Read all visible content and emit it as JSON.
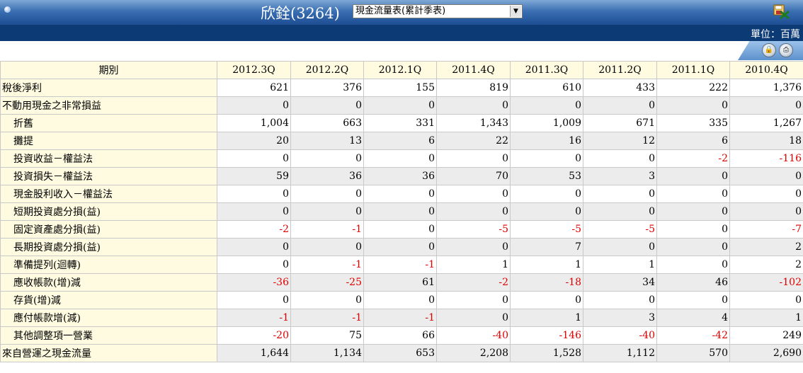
{
  "header": {
    "title": "欣銓(3264)",
    "report_select": "現金流量表(累計季表)",
    "unit": "單位：百萬"
  },
  "table": {
    "label_header": "期別",
    "columns": [
      "2012.3Q",
      "2012.2Q",
      "2012.1Q",
      "2011.4Q",
      "2011.3Q",
      "2011.2Q",
      "2011.1Q",
      "2010.4Q"
    ],
    "rows": [
      {
        "label": "稅後淨利",
        "indent": false,
        "values": [
          "621",
          "376",
          "155",
          "819",
          "610",
          "433",
          "222",
          "1,376"
        ]
      },
      {
        "label": "不動用現金之非常損益",
        "indent": false,
        "values": [
          "0",
          "0",
          "0",
          "0",
          "0",
          "0",
          "0",
          "0"
        ]
      },
      {
        "label": "折舊",
        "indent": true,
        "values": [
          "1,004",
          "663",
          "331",
          "1,343",
          "1,009",
          "671",
          "335",
          "1,267"
        ]
      },
      {
        "label": "攤提",
        "indent": true,
        "values": [
          "20",
          "13",
          "6",
          "22",
          "16",
          "12",
          "6",
          "18"
        ]
      },
      {
        "label": "投資收益－權益法",
        "indent": true,
        "values": [
          "0",
          "0",
          "0",
          "0",
          "0",
          "0",
          "-2",
          "-116"
        ]
      },
      {
        "label": "投資損失－權益法",
        "indent": true,
        "values": [
          "59",
          "36",
          "36",
          "70",
          "53",
          "3",
          "0",
          "0"
        ]
      },
      {
        "label": "現金股利收入－權益法",
        "indent": true,
        "values": [
          "0",
          "0",
          "0",
          "0",
          "0",
          "0",
          "0",
          "0"
        ]
      },
      {
        "label": "短期投資處分損(益)",
        "indent": true,
        "values": [
          "0",
          "0",
          "0",
          "0",
          "0",
          "0",
          "0",
          "0"
        ]
      },
      {
        "label": "固定資產處分損(益)",
        "indent": true,
        "values": [
          "-2",
          "-1",
          "0",
          "-5",
          "-5",
          "-5",
          "0",
          "-7"
        ]
      },
      {
        "label": "長期投資處分損(益)",
        "indent": true,
        "values": [
          "0",
          "0",
          "0",
          "0",
          "7",
          "0",
          "0",
          "2"
        ]
      },
      {
        "label": "準備提列(迴轉)",
        "indent": true,
        "values": [
          "0",
          "-1",
          "-1",
          "1",
          "1",
          "1",
          "0",
          "2"
        ]
      },
      {
        "label": "應收帳款(增)減",
        "indent": true,
        "values": [
          "-36",
          "-25",
          "61",
          "-2",
          "-18",
          "34",
          "46",
          "-102"
        ]
      },
      {
        "label": "存貨(增)減",
        "indent": true,
        "values": [
          "0",
          "0",
          "0",
          "0",
          "0",
          "0",
          "0",
          "0"
        ]
      },
      {
        "label": "應付帳款增(減)",
        "indent": true,
        "values": [
          "-1",
          "-1",
          "-1",
          "0",
          "1",
          "3",
          "4",
          "1"
        ]
      },
      {
        "label": "其他調整項一營業",
        "indent": true,
        "values": [
          "-20",
          "75",
          "66",
          "-40",
          "-146",
          "-40",
          "-42",
          "249"
        ]
      },
      {
        "label": "來自營運之現金流量",
        "indent": false,
        "values": [
          "1,644",
          "1,134",
          "653",
          "2,208",
          "1,528",
          "1,112",
          "570",
          "2,690"
        ]
      }
    ]
  },
  "colors": {
    "negative": "#e00000",
    "header_bg": "#fffbe0",
    "alt_row": "#ececec"
  }
}
